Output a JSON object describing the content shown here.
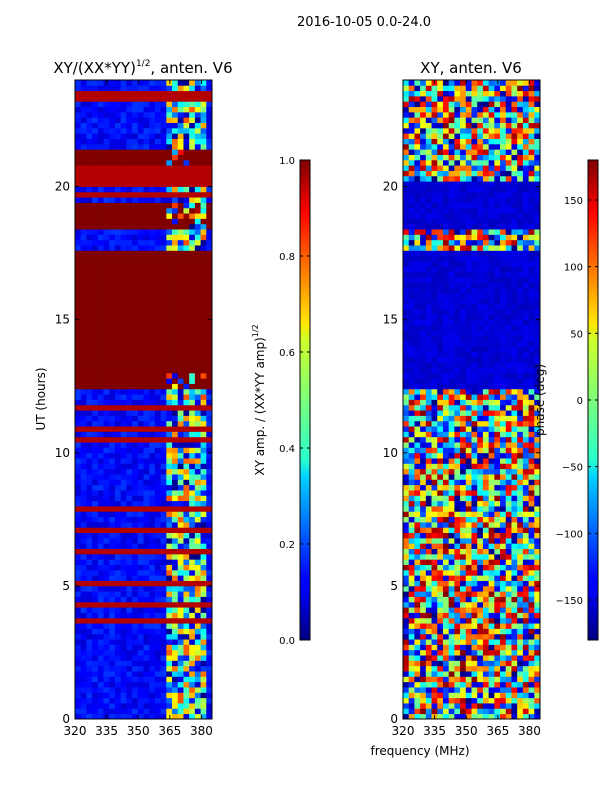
{
  "figure": {
    "suptitle": "2016-10-05 0.0-24.0",
    "xlabel_shared": "frequency (MHz)"
  },
  "chart_data": [
    {
      "type": "heatmap",
      "title_main": "XY/(XX*YY)",
      "title_sup": "1/2",
      "title_tail": ", anten. V6",
      "ylabel": "UT (hours)",
      "xlim": [
        320,
        385
      ],
      "ylim": [
        0,
        24
      ],
      "xticks": [
        320,
        335,
        350,
        365,
        380
      ],
      "yticks": [
        0,
        5,
        10,
        15,
        20
      ],
      "colorbar": {
        "label": "XY amp. / (XX*YY amp)",
        "label_sup": "1/2",
        "range": [
          0.0,
          1.0
        ],
        "ticks": [
          "0.0",
          "0.2",
          "0.4",
          "0.6",
          "0.8",
          "1.0"
        ],
        "tick_values": [
          0.0,
          0.2,
          0.4,
          0.6,
          0.8,
          1.0
        ]
      },
      "saturated_blocks_hours": [
        [
          12.4,
          17.7
        ],
        [
          18.3,
          19.4
        ],
        [
          19.4,
          19.5
        ],
        [
          20.9,
          21.4
        ]
      ],
      "colormap": "jet"
    },
    {
      "type": "heatmap",
      "title_main": "XY, anten. V6",
      "ylabel": "",
      "xlim": [
        320,
        385
      ],
      "ylim": [
        0,
        24
      ],
      "xticks": [
        320,
        335,
        350,
        365,
        380
      ],
      "yticks": [
        0,
        5,
        10,
        15,
        20
      ],
      "colorbar": {
        "label": "phase (deg)",
        "range": [
          -180,
          180
        ],
        "ticks": [
          "−150",
          "−100",
          "−50",
          "0",
          "50",
          "100",
          "150"
        ],
        "tick_values": [
          -150,
          -100,
          -50,
          0,
          50,
          100,
          150
        ]
      },
      "low_phase_blocks_hours": [
        [
          12.4,
          17.7
        ],
        [
          18.5,
          19.4
        ],
        [
          19.4,
          20.3
        ]
      ],
      "colormap": "jet"
    }
  ]
}
